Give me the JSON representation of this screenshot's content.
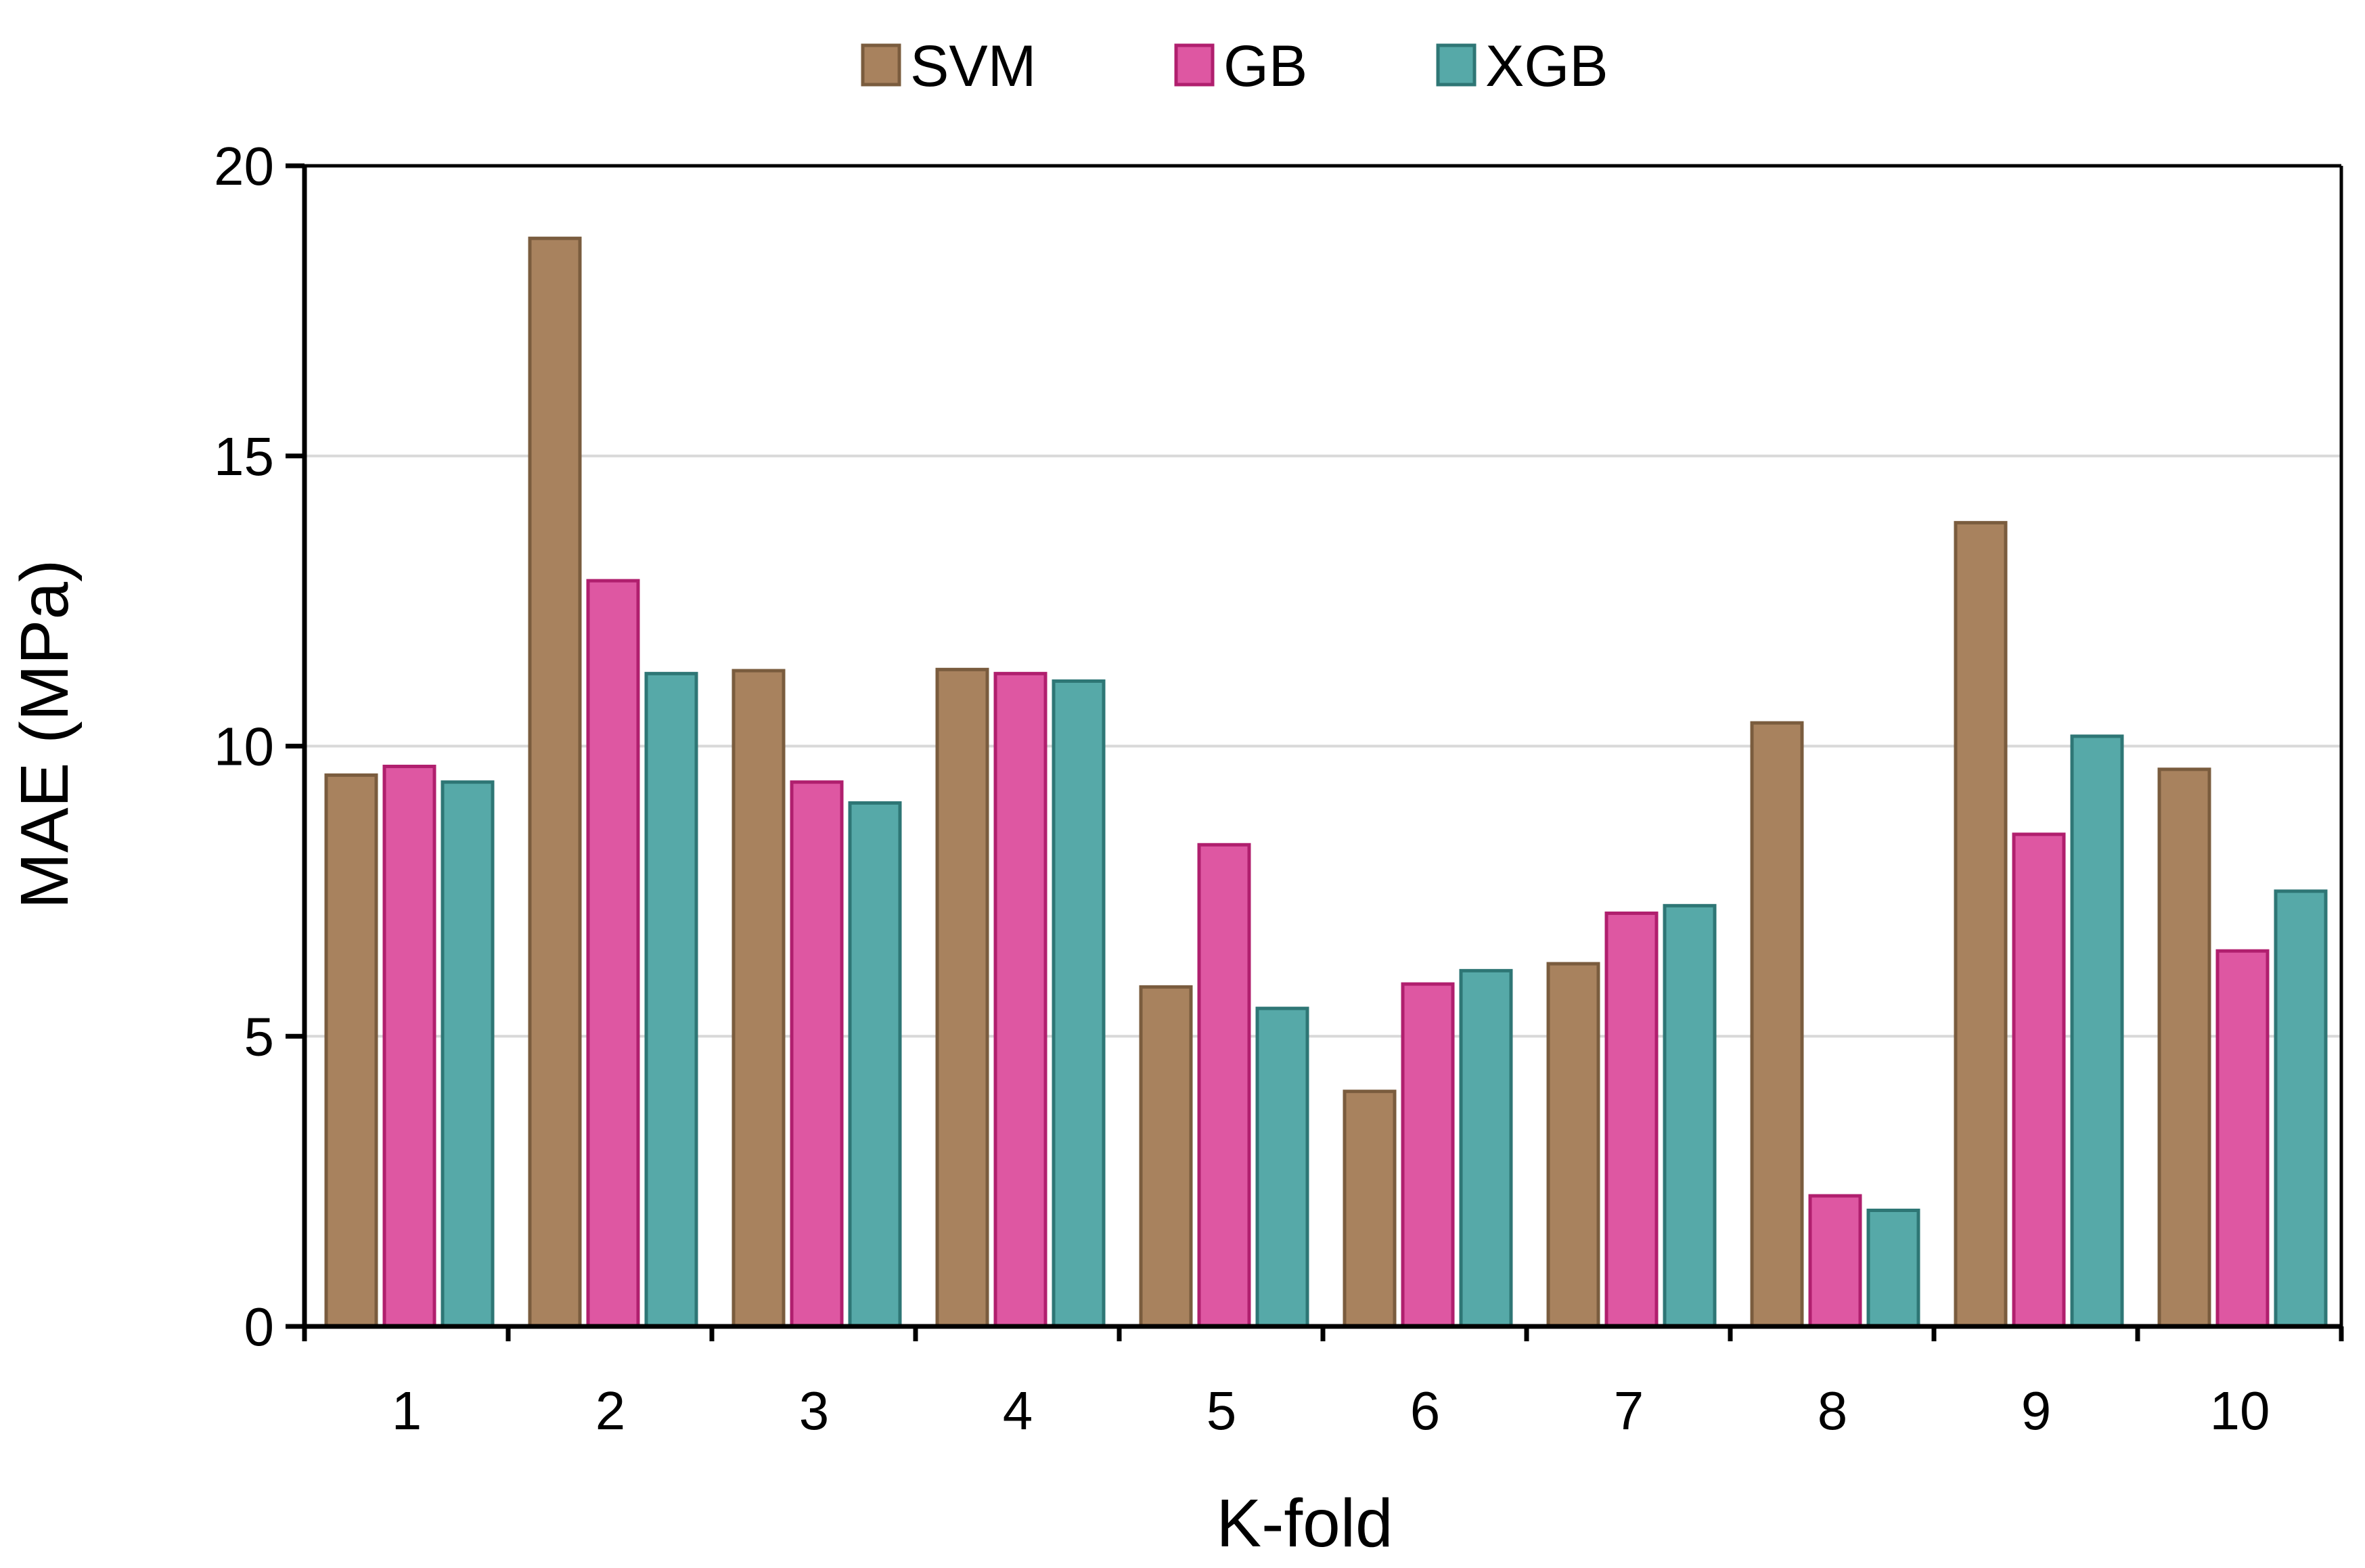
{
  "chart_data": {
    "type": "bar",
    "title": "",
    "xlabel": "K-fold",
    "ylabel": "MAE (MPa)",
    "categories": [
      "1",
      "2",
      "3",
      "4",
      "5",
      "6",
      "7",
      "8",
      "9",
      "10"
    ],
    "ylim": [
      0,
      20
    ],
    "yticks": [
      "0",
      "5",
      "10",
      "15",
      "20"
    ],
    "grid": true,
    "legend_position": "top-center",
    "series": [
      {
        "name": "SVM",
        "color": "#A8825E",
        "stroke": "#7A5C3E",
        "values": [
          9.5,
          18.75,
          11.3,
          11.32,
          5.85,
          4.05,
          6.25,
          10.4,
          13.85,
          9.6
        ]
      },
      {
        "name": "GB",
        "color": "#DE57A2",
        "stroke": "#B01F6E",
        "values": [
          9.65,
          12.85,
          9.38,
          11.25,
          8.3,
          5.9,
          7.12,
          2.25,
          8.48,
          6.47
        ]
      },
      {
        "name": "XGB",
        "color": "#56A9A8",
        "stroke": "#2E7675",
        "values": [
          9.38,
          11.25,
          9.02,
          11.12,
          5.48,
          6.13,
          7.25,
          2.0,
          10.17,
          7.5
        ]
      }
    ]
  }
}
